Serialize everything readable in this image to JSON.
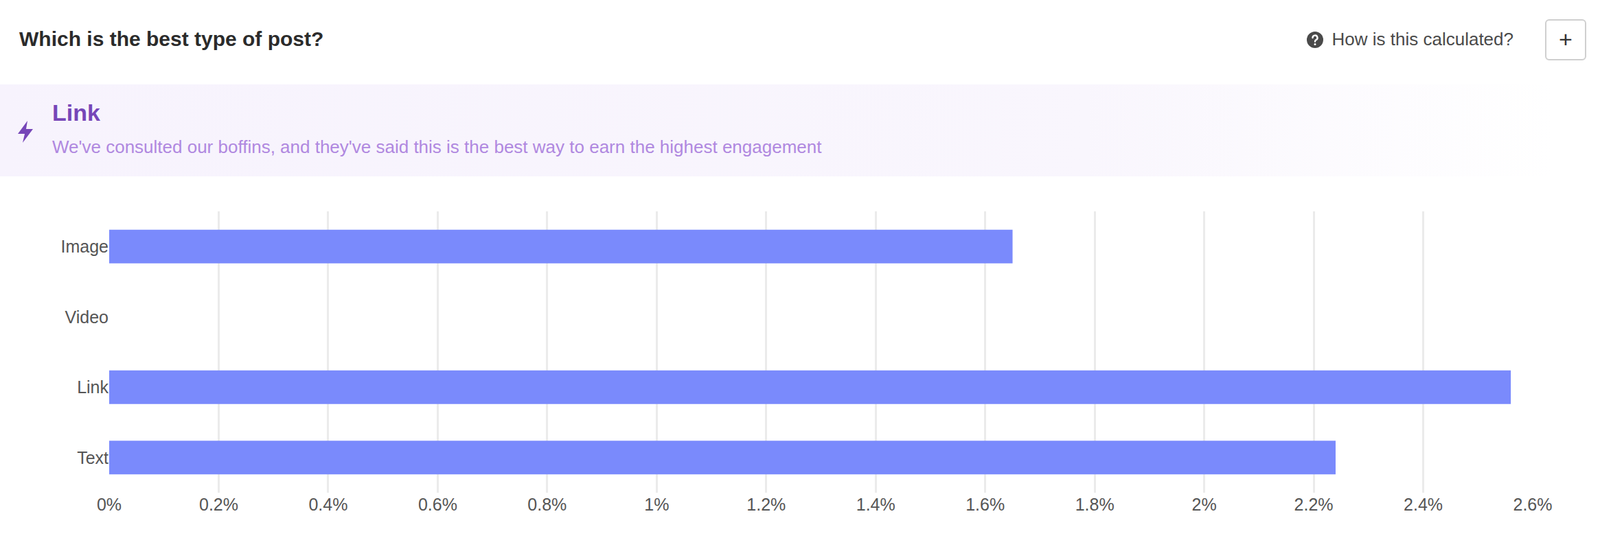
{
  "header": {
    "title": "Which is the best type of post?",
    "help": "How is this calculated?",
    "button": "+"
  },
  "chart_data": {
    "type": "bar",
    "orientation": "horizontal",
    "title": "Link",
    "subtitle": "We've consulted our boffins, and they've said this is the best way to earn the highest engagement",
    "categories": [
      "Image",
      "Video",
      "Link",
      "Text"
    ],
    "values": [
      1.65,
      0,
      2.56,
      2.24
    ],
    "color": "#7a8afc",
    "xlim": [
      0,
      2.6
    ],
    "xticks": [
      {
        "value": 0,
        "label": "0%"
      },
      {
        "value": 0.2,
        "label": "0.2%"
      },
      {
        "value": 0.4,
        "label": "0.4%"
      },
      {
        "value": 0.6,
        "label": "0.6%"
      },
      {
        "value": 0.8,
        "label": "0.8%"
      },
      {
        "value": 1,
        "label": "1%"
      },
      {
        "value": 1.2,
        "label": "1.2%"
      },
      {
        "value": 1.4,
        "label": "1.4%"
      },
      {
        "value": 1.6,
        "label": "1.6%"
      },
      {
        "value": 1.8,
        "label": "1.8%"
      },
      {
        "value": 2,
        "label": "2%"
      },
      {
        "value": 2.2,
        "label": "2.2%"
      },
      {
        "value": 2.4,
        "label": "2.4%"
      },
      {
        "value": 2.6,
        "label": "2.6%"
      }
    ],
    "grid": true
  }
}
